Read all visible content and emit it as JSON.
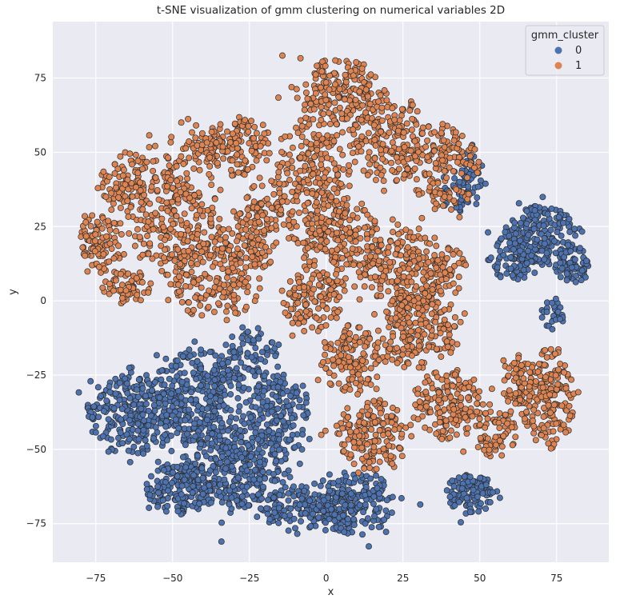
{
  "chart_data": {
    "type": "scatter",
    "title": "t-SNE visualization of gmm clustering on numerical variables 2D",
    "xlabel": "x",
    "ylabel": "y",
    "xlim": [
      -89,
      92
    ],
    "ylim": [
      -88,
      94
    ],
    "xticks": [
      -75,
      -50,
      -25,
      0,
      25,
      50,
      75
    ],
    "yticks": [
      -75,
      -50,
      -25,
      0,
      25,
      50,
      75
    ],
    "xtick_labels": [
      "−75",
      "−50",
      "−25",
      "0",
      "25",
      "50",
      "75"
    ],
    "ytick_labels": [
      "−75",
      "−50",
      "−25",
      "0",
      "25",
      "50",
      "75"
    ],
    "grid": true,
    "legend": {
      "title": "gmm_cluster",
      "placement": "upper right",
      "entries": [
        "0",
        "1"
      ]
    },
    "colors": {
      "background": "#eaeaf2",
      "grid": "#ffffff",
      "cluster_0": "#4c72b0",
      "cluster_1": "#dd8452",
      "edge": "#2b2b2b"
    },
    "series": [
      {
        "name": "0",
        "color": "#4c72b0",
        "regions": [
          {
            "cx": -62,
            "cy": -38,
            "rx": 16,
            "ry": 14,
            "n": 280
          },
          {
            "cx": -42,
            "cy": -32,
            "rx": 15,
            "ry": 16,
            "n": 280
          },
          {
            "cx": -30,
            "cy": -55,
            "rx": 18,
            "ry": 15,
            "n": 360
          },
          {
            "cx": -47,
            "cy": -63,
            "rx": 12,
            "ry": 9,
            "n": 160
          },
          {
            "cx": -15,
            "cy": -38,
            "rx": 10,
            "ry": 14,
            "n": 160
          },
          {
            "cx": -5,
            "cy": -70,
            "rx": 16,
            "ry": 8,
            "n": 200
          },
          {
            "cx": 10,
            "cy": -68,
            "rx": 12,
            "ry": 11,
            "n": 160
          },
          {
            "cx": 47,
            "cy": -65,
            "rx": 8,
            "ry": 7,
            "n": 110
          },
          {
            "cx": -25,
            "cy": -20,
            "rx": 10,
            "ry": 10,
            "n": 90
          },
          {
            "cx": 70,
            "cy": 22,
            "rx": 12,
            "ry": 10,
            "n": 200
          },
          {
            "cx": 60,
            "cy": 14,
            "rx": 8,
            "ry": 7,
            "n": 70
          },
          {
            "cx": 80,
            "cy": 12,
            "rx": 6,
            "ry": 6,
            "n": 60
          },
          {
            "cx": 74,
            "cy": -5,
            "rx": 4,
            "ry": 6,
            "n": 30
          },
          {
            "cx": 45,
            "cy": 40,
            "rx": 7,
            "ry": 10,
            "n": 70
          }
        ]
      },
      {
        "name": "1",
        "color": "#dd8452",
        "regions": [
          {
            "cx": -73,
            "cy": 20,
            "rx": 7,
            "ry": 10,
            "n": 90
          },
          {
            "cx": -65,
            "cy": 40,
            "rx": 9,
            "ry": 10,
            "n": 90
          },
          {
            "cx": -50,
            "cy": 30,
            "rx": 15,
            "ry": 22,
            "n": 270
          },
          {
            "cx": -35,
            "cy": 10,
            "rx": 15,
            "ry": 18,
            "n": 230
          },
          {
            "cx": -28,
            "cy": 52,
            "rx": 10,
            "ry": 10,
            "n": 120
          },
          {
            "cx": -22,
            "cy": 25,
            "rx": 8,
            "ry": 15,
            "n": 110
          },
          {
            "cx": -5,
            "cy": 40,
            "rx": 13,
            "ry": 22,
            "n": 240
          },
          {
            "cx": 5,
            "cy": 70,
            "rx": 13,
            "ry": 12,
            "n": 190
          },
          {
            "cx": 5,
            "cy": 20,
            "rx": 13,
            "ry": 15,
            "n": 210
          },
          {
            "cx": 20,
            "cy": 55,
            "rx": 13,
            "ry": 15,
            "n": 190
          },
          {
            "cx": 25,
            "cy": 10,
            "rx": 12,
            "ry": 14,
            "n": 190
          },
          {
            "cx": 38,
            "cy": 45,
            "rx": 12,
            "ry": 15,
            "n": 160
          },
          {
            "cx": -5,
            "cy": 0,
            "rx": 10,
            "ry": 10,
            "n": 110
          },
          {
            "cx": 8,
            "cy": -20,
            "rx": 10,
            "ry": 12,
            "n": 130
          },
          {
            "cx": 30,
            "cy": -10,
            "rx": 14,
            "ry": 14,
            "n": 200
          },
          {
            "cx": 15,
            "cy": -45,
            "rx": 12,
            "ry": 12,
            "n": 170
          },
          {
            "cx": 40,
            "cy": -35,
            "rx": 12,
            "ry": 12,
            "n": 160
          },
          {
            "cx": 55,
            "cy": -45,
            "rx": 7,
            "ry": 8,
            "n": 70
          },
          {
            "cx": 72,
            "cy": -33,
            "rx": 9,
            "ry": 17,
            "n": 180
          },
          {
            "cx": 62,
            "cy": -28,
            "rx": 5,
            "ry": 10,
            "n": 60
          },
          {
            "cx": -65,
            "cy": 5,
            "rx": 8,
            "ry": 6,
            "n": 60
          },
          {
            "cx": -40,
            "cy": 53,
            "rx": 7,
            "ry": 6,
            "n": 50
          },
          {
            "cx": 40,
            "cy": 10,
            "rx": 6,
            "ry": 8,
            "n": 50
          }
        ]
      }
    ]
  }
}
